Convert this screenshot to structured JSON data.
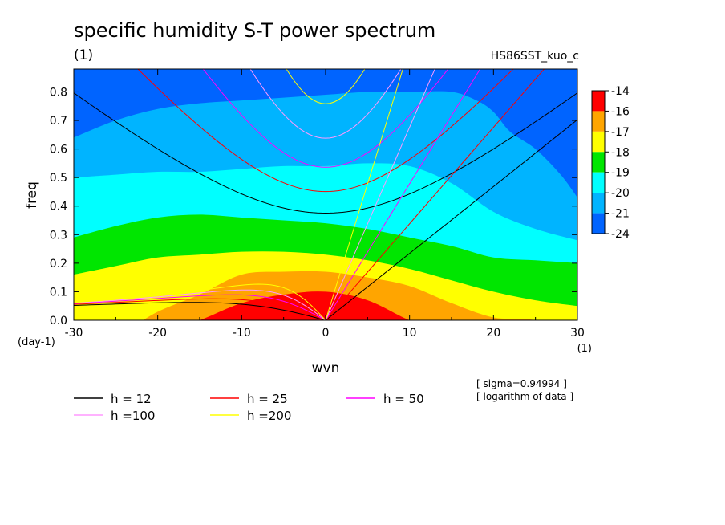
{
  "chart_data": {
    "type": "heatmap",
    "title": "specific humidity S-T power spectrum",
    "title_unit": "(1)",
    "run_label": "HS86SST_kuo_c",
    "xlabel": "wvn",
    "ylabel": "freq",
    "x_unit": "(1)",
    "y_unit": "(day-1)",
    "xlim": [
      -30,
      30
    ],
    "ylim": [
      0.0,
      0.88
    ],
    "x_ticks": [
      -30,
      -20,
      -10,
      0,
      10,
      20,
      30
    ],
    "x_tick_labels": [
      "-30",
      "-20",
      "-10",
      "0",
      "10",
      "20",
      "30"
    ],
    "y_ticks": [
      0.0,
      0.1,
      0.2,
      0.3,
      0.4,
      0.5,
      0.6,
      0.7,
      0.8
    ],
    "y_tick_labels": [
      "0.0",
      "0.1",
      "0.2",
      "0.3",
      "0.4",
      "0.5",
      "0.6",
      "0.7",
      "0.8"
    ],
    "color_levels": [
      "-14",
      "-16",
      "-17",
      "-18",
      "-19",
      "-20",
      "-21",
      "-24"
    ],
    "color_fills": [
      "#ff0000",
      "#ffa500",
      "#ffff00",
      "#00e600",
      "#00ffff",
      "#00b4ff",
      "#0064ff"
    ],
    "notes": [
      "[ sigma=0.94994 ]",
      "[ logarithm of data ]"
    ],
    "equivalent_depths": [
      {
        "label": "h = 12",
        "h": 12,
        "color": "#000000"
      },
      {
        "label": "h = 25",
        "h": 25,
        "color": "#ff0000"
      },
      {
        "label": "h = 50",
        "h": 50,
        "color": "#ff00ff"
      },
      {
        "label": "h =100",
        "h": 100,
        "color": "#ff99ff"
      },
      {
        "label": "h =200",
        "h": 200,
        "color": "#ffff00"
      }
    ],
    "contour_boundaries": [
      {
        "upper_fill": "#ffa500",
        "x": [
          -30,
          -25,
          -20,
          -15,
          -10,
          -5,
          0,
          5,
          10,
          15,
          20,
          25,
          30
        ],
        "y": [
          -0.05,
          -0.05,
          -0.05,
          0.0,
          0.06,
          0.09,
          0.1,
          0.07,
          0.0,
          -0.05,
          -0.05,
          -0.05,
          -0.05
        ]
      },
      {
        "upper_fill": "#ffff00",
        "x": [
          -30,
          -25,
          -20,
          -15,
          -10,
          -5,
          0,
          5,
          10,
          15,
          20,
          25,
          30
        ],
        "y": [
          -0.05,
          -0.05,
          0.03,
          0.09,
          0.16,
          0.17,
          0.17,
          0.15,
          0.12,
          0.06,
          0.01,
          0.0,
          -0.05
        ]
      },
      {
        "upper_fill": "#00e600",
        "x": [
          -30,
          -25,
          -20,
          -15,
          -10,
          -5,
          0,
          5,
          10,
          15,
          20,
          25,
          30
        ],
        "y": [
          0.16,
          0.19,
          0.22,
          0.23,
          0.24,
          0.24,
          0.23,
          0.21,
          0.18,
          0.14,
          0.1,
          0.07,
          0.05
        ]
      },
      {
        "upper_fill": "#00ffff",
        "x": [
          -30,
          -25,
          -20,
          -15,
          -10,
          -5,
          0,
          5,
          10,
          15,
          20,
          25,
          30
        ],
        "y": [
          0.29,
          0.33,
          0.36,
          0.37,
          0.36,
          0.35,
          0.34,
          0.32,
          0.29,
          0.26,
          0.22,
          0.21,
          0.2
        ]
      },
      {
        "upper_fill": "#00b4ff",
        "x": [
          -30,
          -25,
          -20,
          -15,
          -10,
          -5,
          0,
          5,
          10,
          15,
          20,
          25,
          30
        ],
        "y": [
          0.5,
          0.51,
          0.52,
          0.52,
          0.53,
          0.54,
          0.54,
          0.55,
          0.54,
          0.48,
          0.38,
          0.32,
          0.28
        ]
      },
      {
        "upper_fill": "#0064ff",
        "x": [
          -30,
          -25,
          -20,
          -15,
          -10,
          -5,
          0,
          5,
          10,
          15,
          18,
          20,
          22,
          25,
          28,
          30
        ],
        "y": [
          0.64,
          0.7,
          0.74,
          0.76,
          0.77,
          0.78,
          0.79,
          0.8,
          0.8,
          0.8,
          0.77,
          0.73,
          0.66,
          0.6,
          0.51,
          0.43
        ]
      }
    ]
  }
}
